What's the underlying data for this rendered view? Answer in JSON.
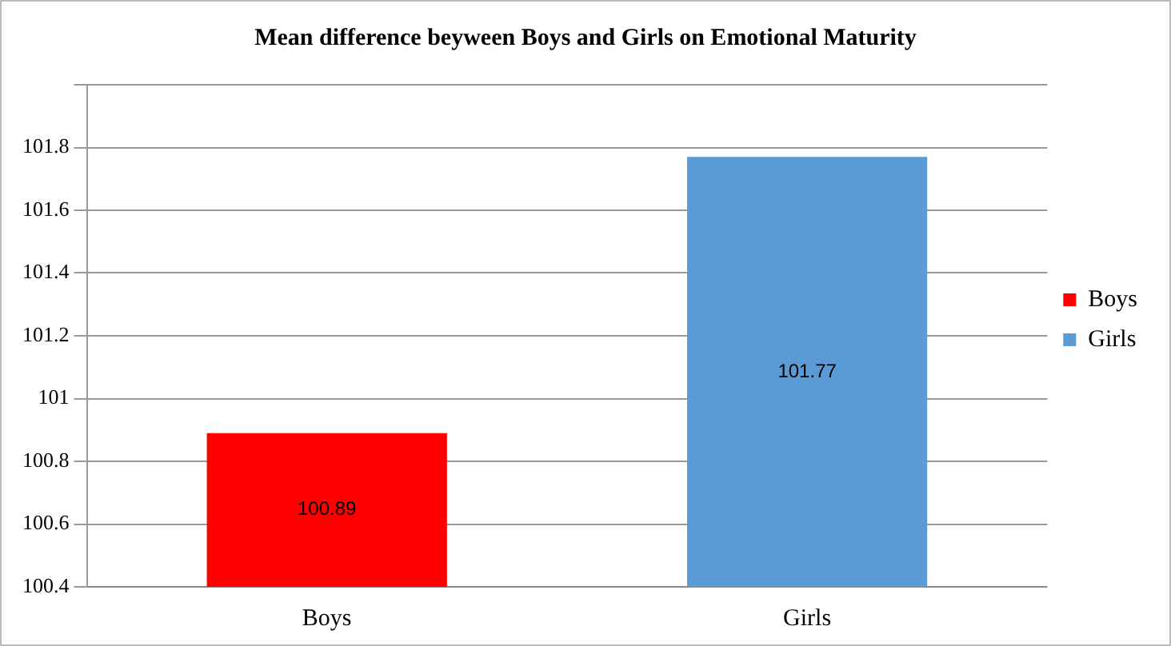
{
  "chart_data": {
    "type": "bar",
    "title": "Mean difference beyween Boys and Girls on Emotional Maturity",
    "categories": [
      "Boys",
      "Girls"
    ],
    "series": [
      {
        "name": "Boys",
        "color": "#ff0000",
        "values": [
          100.89,
          null
        ]
      },
      {
        "name": "Girls",
        "color": "#5b9bd5",
        "values": [
          null,
          101.77
        ]
      }
    ],
    "ylim": [
      100.4,
      102
    ],
    "yticks": [
      100.4,
      100.6,
      100.8,
      101,
      101.2,
      101.4,
      101.6,
      101.8,
      {
        "value": 102,
        "label": null
      }
    ],
    "grid": "y",
    "legend": "right",
    "data_labels": true
  }
}
